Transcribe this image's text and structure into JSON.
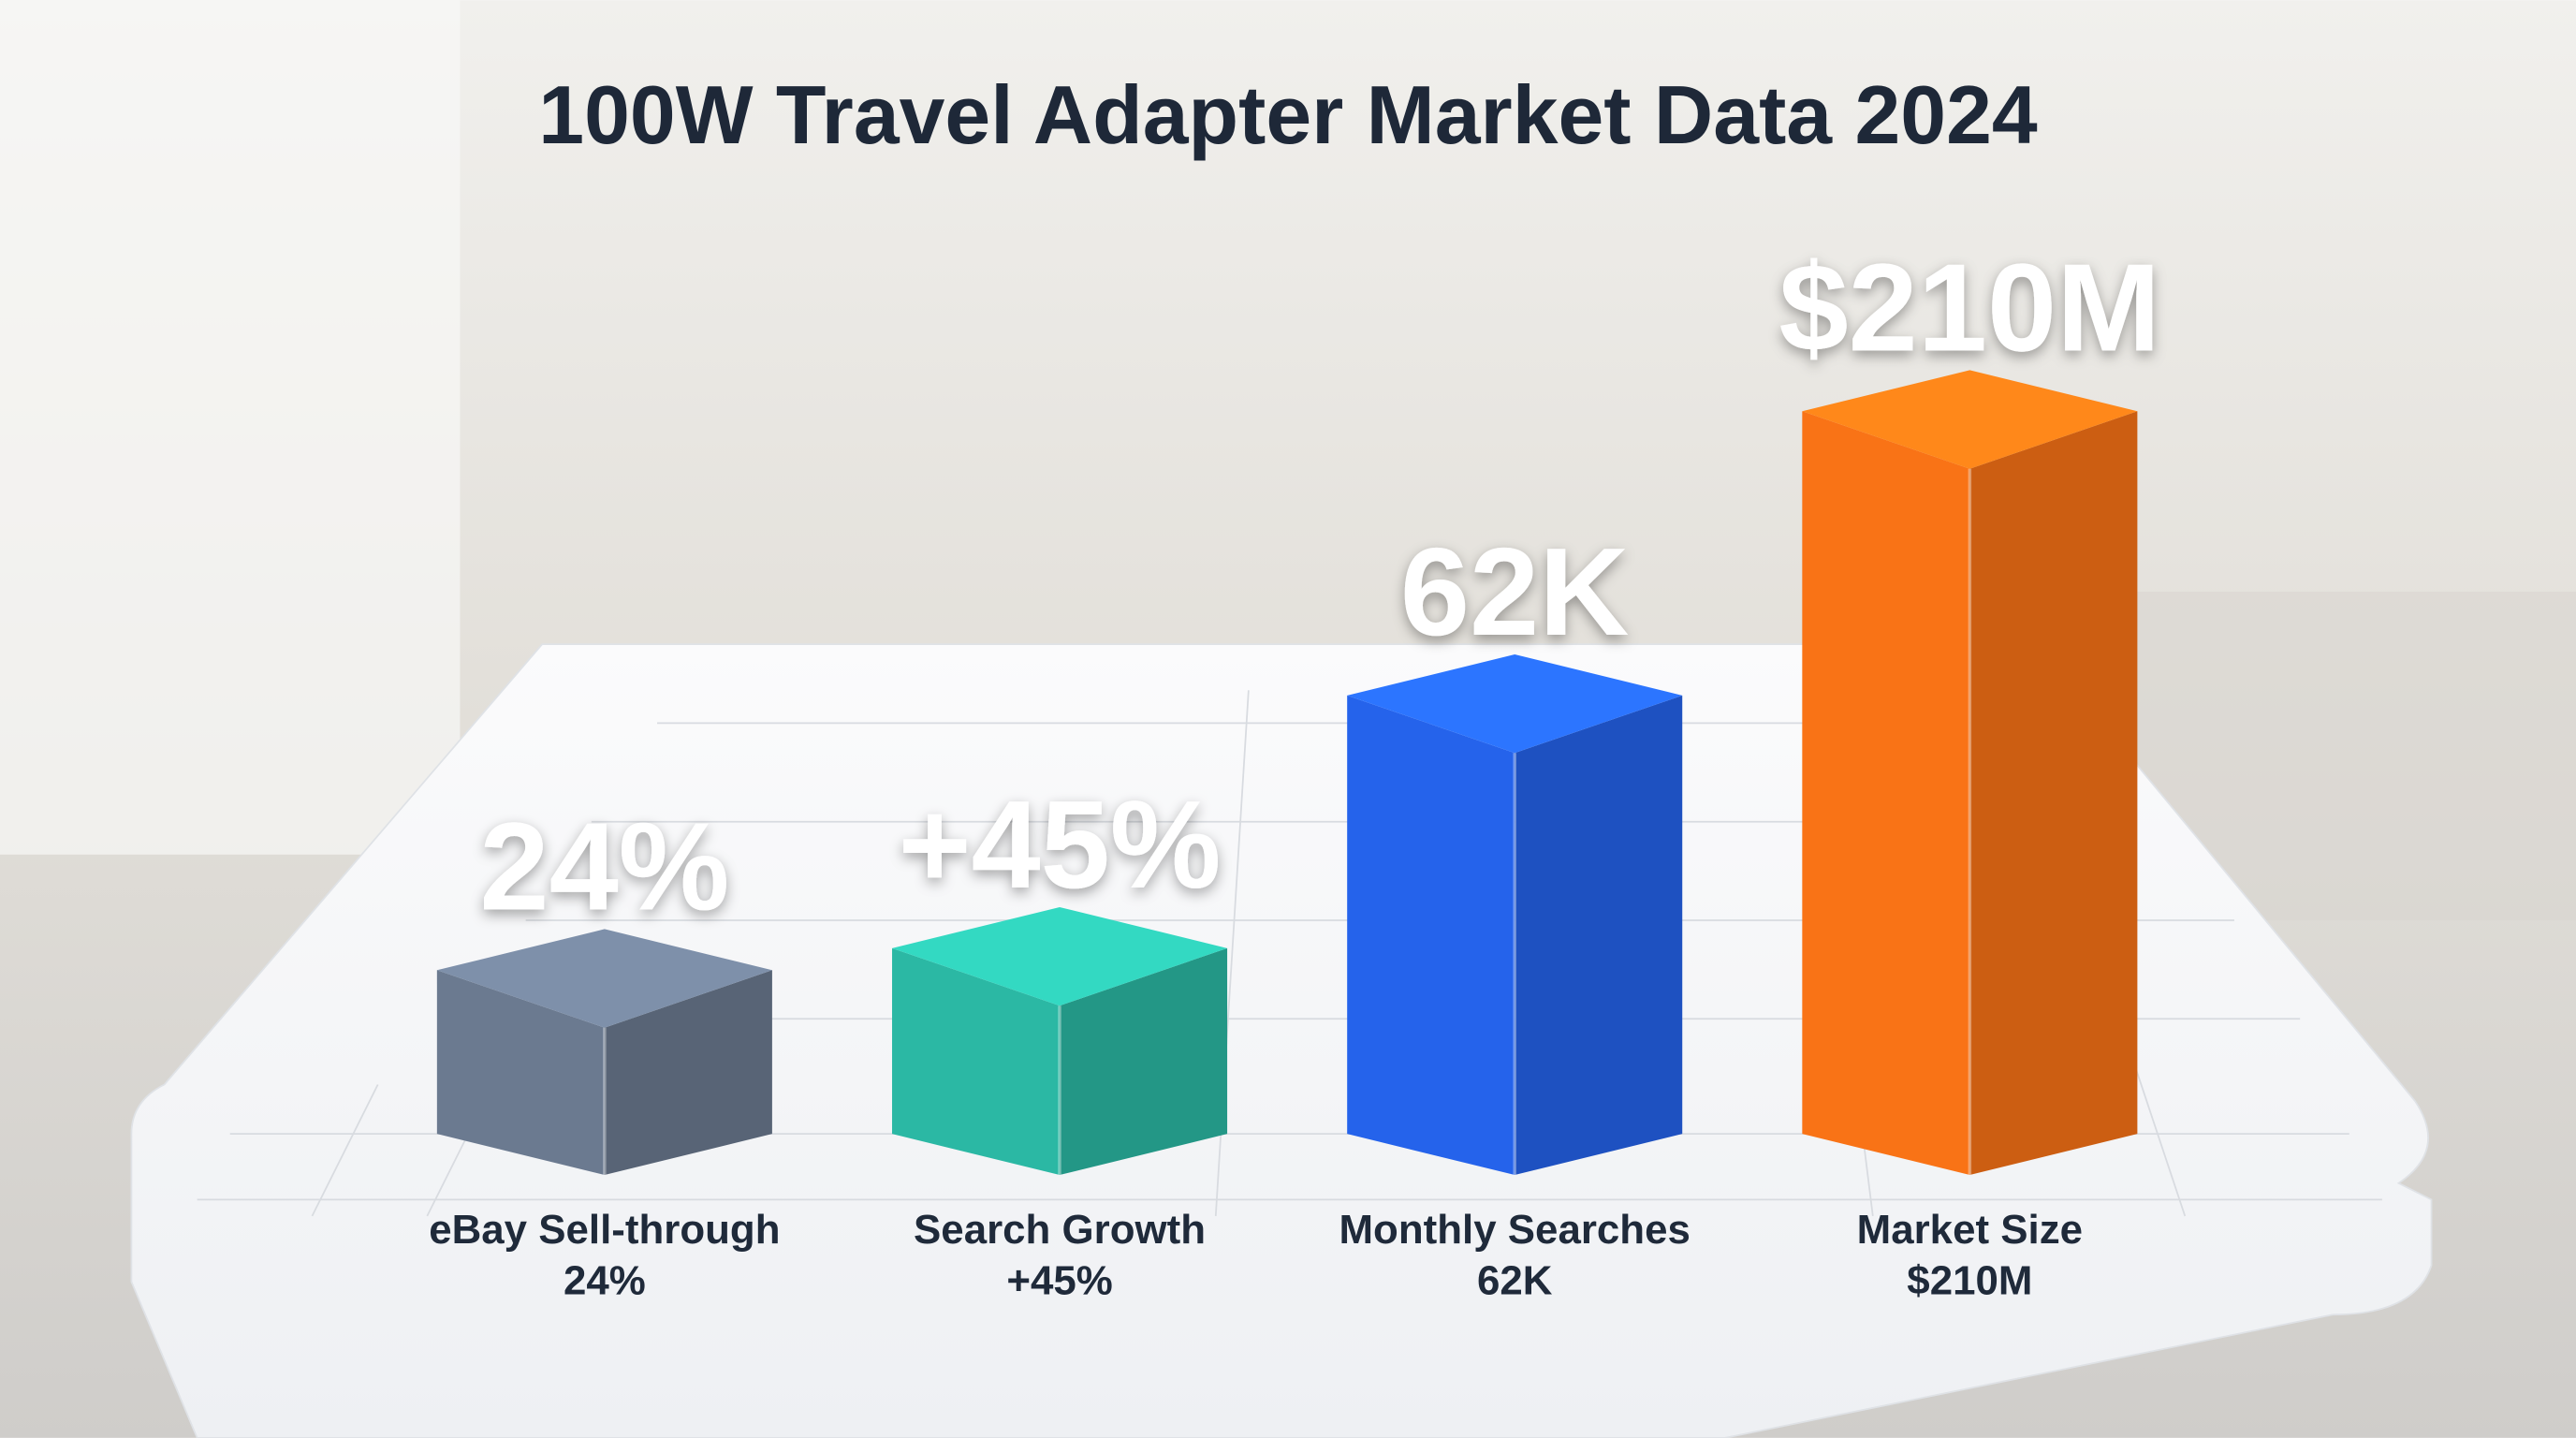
{
  "chart_data": {
    "type": "bar3d",
    "title": "100W Travel Adapter Market Data 2024",
    "categories": [
      "eBay Sell-through",
      "Search Growth",
      "Monthly Searches",
      "Market Size"
    ],
    "values": [
      24,
      45,
      62000,
      210000000
    ],
    "value_labels": [
      "24%",
      "+45%",
      "62K",
      "$210M"
    ],
    "colors": [
      "#6b7a90",
      "#2bb8a4",
      "#2563eb",
      "#f97316"
    ]
  }
}
